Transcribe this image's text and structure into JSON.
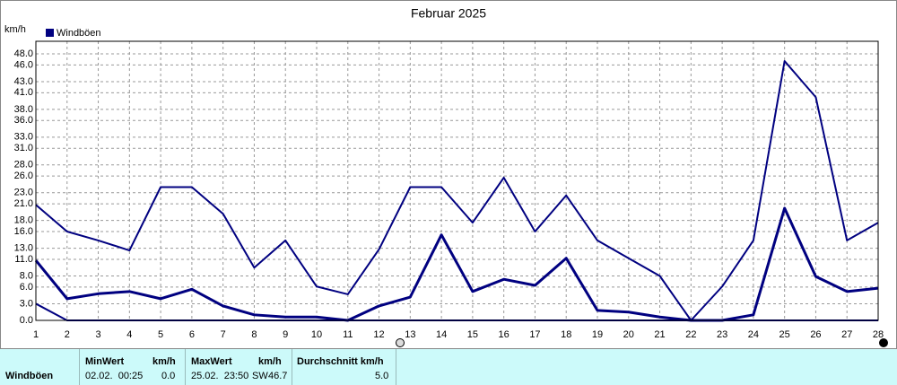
{
  "chart_data": {
    "type": "line",
    "title": "Februar 2025",
    "y_unit": "km/h",
    "legend": "Windböen",
    "x": [
      1,
      2,
      3,
      4,
      5,
      6,
      7,
      8,
      9,
      10,
      11,
      12,
      13,
      14,
      15,
      16,
      17,
      18,
      19,
      20,
      21,
      22,
      23,
      24,
      25,
      26,
      27,
      28
    ],
    "xlim": [
      1,
      28
    ],
    "xticks": [
      1,
      2,
      3,
      4,
      5,
      6,
      7,
      8,
      9,
      10,
      11,
      12,
      13,
      14,
      15,
      16,
      17,
      18,
      19,
      20,
      21,
      22,
      23,
      24,
      25,
      26,
      27,
      28
    ],
    "ylim": [
      0,
      48
    ],
    "yticks": [
      {
        "value": 0,
        "label": "0.0"
      },
      {
        "value": 3,
        "label": "3.0"
      },
      {
        "value": 6,
        "label": "6.0"
      },
      {
        "value": 8,
        "label": "8.0"
      },
      {
        "value": 11,
        "label": "11.0"
      },
      {
        "value": 13,
        "label": "13.0"
      },
      {
        "value": 16,
        "label": "16.0"
      },
      {
        "value": 18,
        "label": "18.0"
      },
      {
        "value": 21,
        "label": "21.0"
      },
      {
        "value": 23,
        "label": "23.0"
      },
      {
        "value": 26,
        "label": "26.0"
      },
      {
        "value": 28,
        "label": "28.0"
      },
      {
        "value": 31,
        "label": "31.0"
      },
      {
        "value": 33,
        "label": "33.0"
      },
      {
        "value": 36,
        "label": "36.0"
      },
      {
        "value": 38,
        "label": "38.0"
      },
      {
        "value": 41,
        "label": "41.0"
      },
      {
        "value": 43,
        "label": "43.0"
      },
      {
        "value": 46,
        "label": "46.0"
      },
      {
        "value": 48,
        "label": "48.0"
      }
    ],
    "grid": true,
    "series": [
      {
        "color": "#000080",
        "width": 2,
        "values": [
          20.8,
          16,
          14.4,
          12.6,
          24,
          24,
          19.2,
          9.5,
          14.4,
          6.1,
          4.7,
          12.8,
          24,
          24,
          17.6,
          25.7,
          16,
          22.5,
          14.4,
          11.2,
          8,
          0,
          6.1,
          14.4,
          46.7,
          40.2,
          14.4,
          17.6
        ]
      },
      {
        "color": "#000080",
        "width": 3,
        "values": [
          10.8,
          3.9,
          4.8,
          5.2,
          3.9,
          5.6,
          2.6,
          1,
          0.6,
          0.6,
          0,
          2.6,
          4.2,
          15.4,
          5.2,
          7.4,
          6.3,
          11.2,
          1.8,
          1.5,
          0.6,
          0,
          0,
          1,
          20.2,
          7.9,
          5.2,
          5.8
        ]
      },
      {
        "color": "#000080",
        "width": 2,
        "values": [
          3,
          0,
          0,
          0,
          0,
          0,
          0,
          0,
          0,
          0,
          0,
          0,
          0,
          0,
          0,
          0,
          0,
          0,
          0,
          0,
          0,
          0,
          0,
          0,
          0,
          0,
          0,
          0
        ]
      }
    ]
  },
  "table": {
    "row_label": "Windböen",
    "min": {
      "header": "MinWert",
      "unit": "km/h",
      "time": "02.02.  00:25",
      "value": "0.0"
    },
    "max": {
      "header": "MaxWert",
      "unit": "km/h",
      "time": "25.02.  23:50",
      "dir": "SW",
      "value": "46.7"
    },
    "avg": {
      "header": "Durchschnitt km/h",
      "value": "5.0"
    }
  }
}
